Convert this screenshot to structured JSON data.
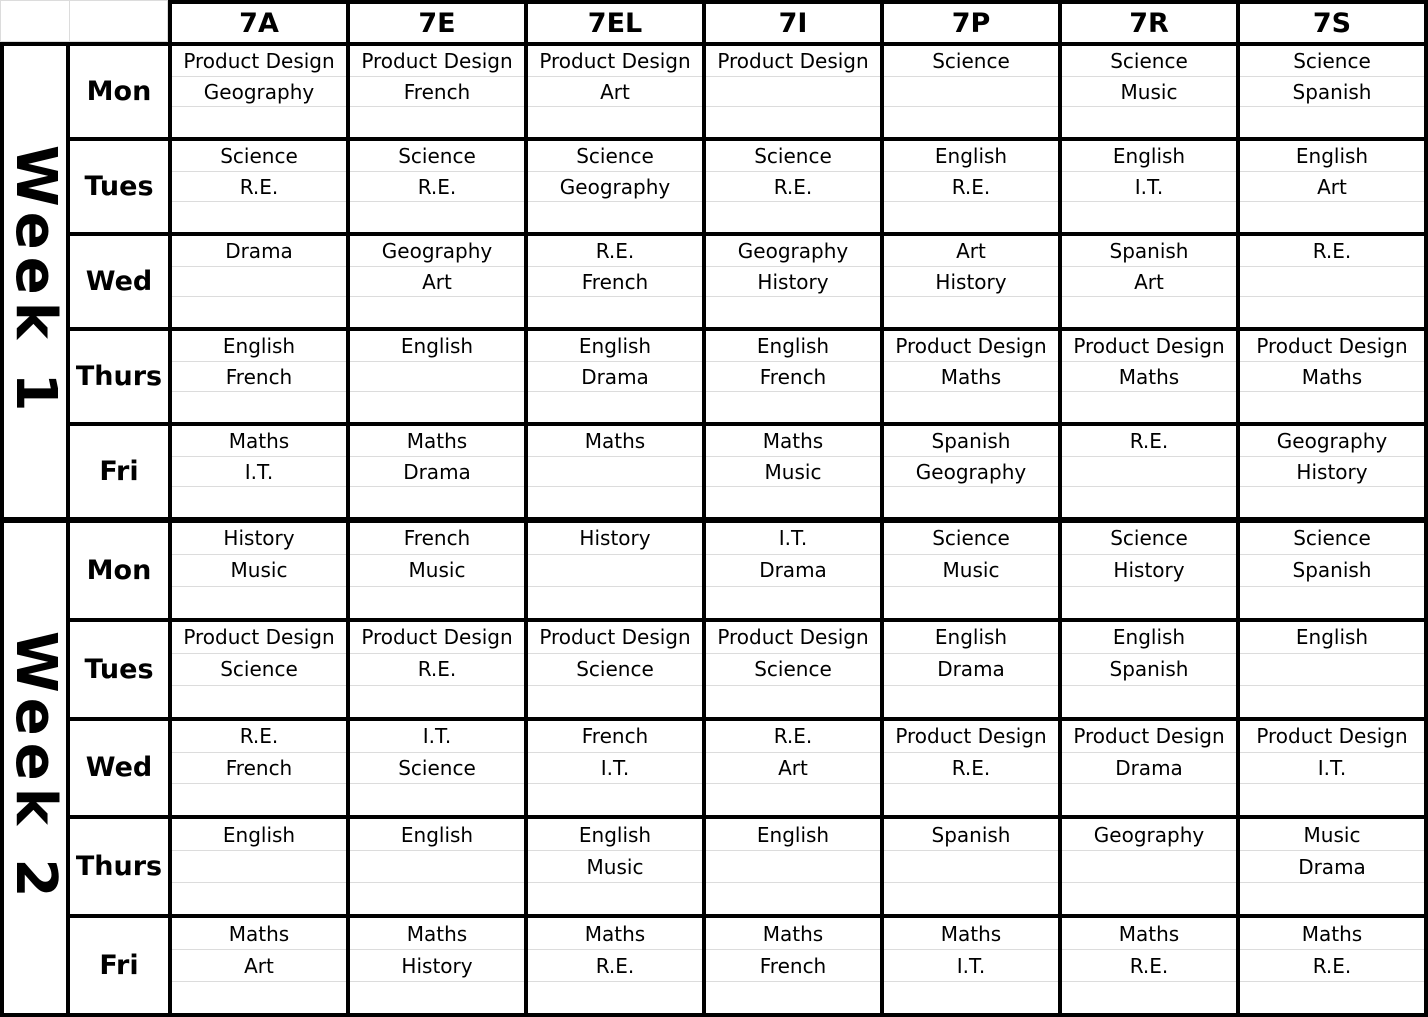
{
  "table": {
    "class_columns": [
      "7A",
      "7E",
      "7EL",
      "7I",
      "7P",
      "7R",
      "7S"
    ],
    "weeks": [
      {
        "label": "Week 1",
        "days": [
          {
            "label": "Mon",
            "lessons": [
              [
                "Product Design",
                "Geography"
              ],
              [
                "Product Design",
                "French"
              ],
              [
                "Product Design",
                "Art"
              ],
              [
                "Product Design"
              ],
              [
                "Science"
              ],
              [
                "Science",
                "Music"
              ],
              [
                "Science",
                "Spanish"
              ]
            ]
          },
          {
            "label": "Tues",
            "lessons": [
              [
                "Science",
                "R.E."
              ],
              [
                "Science",
                "R.E."
              ],
              [
                "Science",
                "Geography"
              ],
              [
                "Science",
                "R.E."
              ],
              [
                "English",
                "R.E."
              ],
              [
                "English",
                "I.T."
              ],
              [
                "English",
                "Art"
              ]
            ]
          },
          {
            "label": "Wed",
            "lessons": [
              [
                "Drama"
              ],
              [
                "Geography",
                "Art"
              ],
              [
                "R.E.",
                "French"
              ],
              [
                "Geography",
                "History"
              ],
              [
                "Art",
                "History"
              ],
              [
                "Spanish",
                "Art"
              ],
              [
                "R.E."
              ]
            ]
          },
          {
            "label": "Thurs",
            "lessons": [
              [
                "English",
                "French"
              ],
              [
                "English"
              ],
              [
                "English",
                "Drama"
              ],
              [
                "English",
                "French"
              ],
              [
                "Product Design",
                "Maths"
              ],
              [
                "Product Design",
                "Maths"
              ],
              [
                "Product Design",
                "Maths"
              ]
            ]
          },
          {
            "label": "Fri",
            "lessons": [
              [
                "Maths",
                "I.T."
              ],
              [
                "Maths",
                "Drama"
              ],
              [
                "Maths"
              ],
              [
                "Maths",
                "Music"
              ],
              [
                "Spanish",
                "Geography"
              ],
              [
                "R.E."
              ],
              [
                "Geography",
                "History"
              ]
            ]
          }
        ]
      },
      {
        "label": "Week 2",
        "days": [
          {
            "label": "Mon",
            "lessons": [
              [
                "History",
                "Music"
              ],
              [
                "French",
                "Music"
              ],
              [
                "History"
              ],
              [
                "I.T.",
                "Drama"
              ],
              [
                "Science",
                "Music"
              ],
              [
                "Science",
                "History"
              ],
              [
                "Science",
                "Spanish"
              ]
            ]
          },
          {
            "label": "Tues",
            "lessons": [
              [
                "Product Design",
                "Science"
              ],
              [
                "Product Design",
                "R.E."
              ],
              [
                "Product Design",
                "Science"
              ],
              [
                "Product Design",
                "Science"
              ],
              [
                "English",
                "Drama"
              ],
              [
                "English",
                "Spanish"
              ],
              [
                "English"
              ]
            ]
          },
          {
            "label": "Wed",
            "lessons": [
              [
                "R.E.",
                "French"
              ],
              [
                "I.T.",
                "Science"
              ],
              [
                "French",
                "I.T."
              ],
              [
                "R.E.",
                "Art"
              ],
              [
                "Product Design",
                "R.E."
              ],
              [
                "Product Design",
                "Drama"
              ],
              [
                "Product Design",
                "I.T."
              ]
            ]
          },
          {
            "label": "Thurs",
            "lessons": [
              [
                "English"
              ],
              [
                "English"
              ],
              [
                "English",
                "Music"
              ],
              [
                "English"
              ],
              [
                "Spanish"
              ],
              [
                "Geography"
              ],
              [
                "Music",
                "Drama"
              ]
            ]
          },
          {
            "label": "Fri",
            "lessons": [
              [
                "Maths",
                "Art"
              ],
              [
                "Maths",
                "History"
              ],
              [
                "Maths",
                "R.E."
              ],
              [
                "Maths",
                "French"
              ],
              [
                "Maths",
                "I.T."
              ],
              [
                "Maths",
                "R.E."
              ],
              [
                "Maths",
                "R.E."
              ]
            ]
          }
        ]
      }
    ]
  },
  "colors": {
    "grid_heavy": "#000000",
    "grid_light": "#dcdcdc",
    "background": "#ffffff",
    "text": "#000000"
  }
}
